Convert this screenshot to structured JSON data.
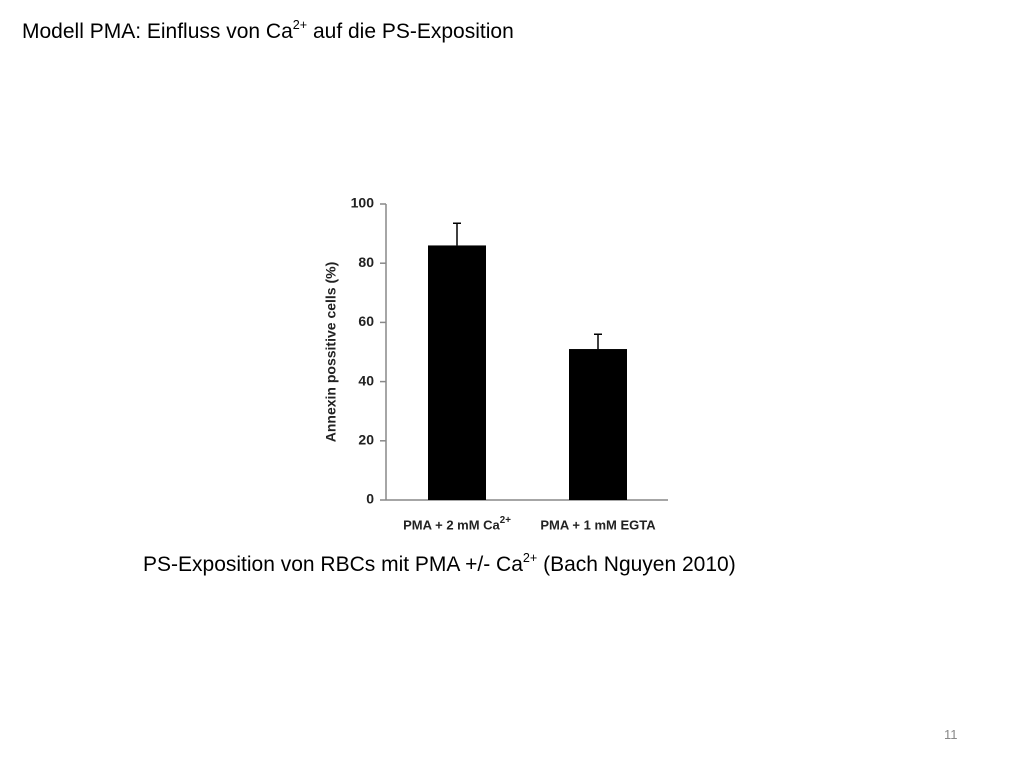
{
  "slide": {
    "title": "Modell PMA: Einfluss von Ca2+ auf die PS-Exposition",
    "caption": "PS-Exposition von RBCs mit PMA +/- Ca2+ (Bach Nguyen 2010)",
    "page_number": "11"
  },
  "chart_data": {
    "type": "bar",
    "y_label": "Annexin possitive cells (%)",
    "categories": [
      "PMA + 2 mM Ca2+",
      "PMA + 1 mM EGTA"
    ],
    "values": [
      86,
      51
    ],
    "errors": [
      7.5,
      5
    ],
    "color": "#000000",
    "ylim": [
      0,
      100
    ],
    "yticks": [
      0,
      20,
      40,
      60,
      80,
      100
    ]
  }
}
